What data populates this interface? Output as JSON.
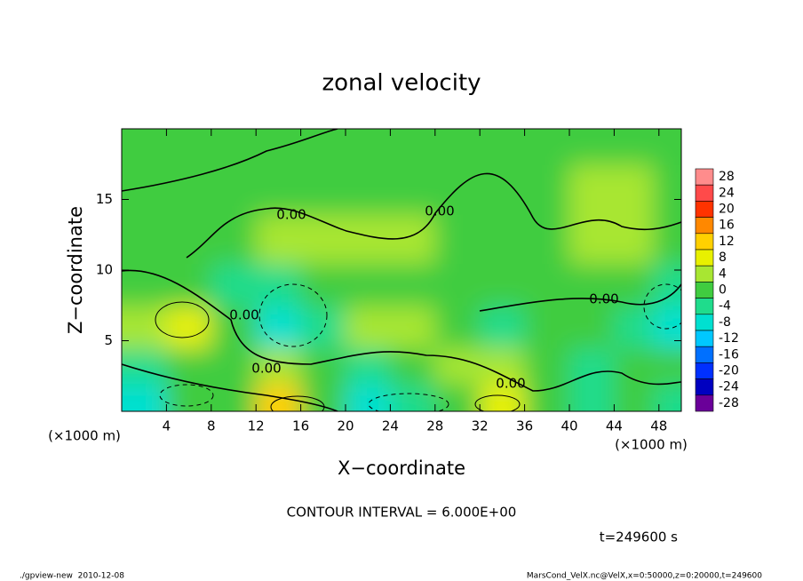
{
  "chart_data": {
    "type": "contour",
    "title": "zonal velocity",
    "x_label": "X−coordinate",
    "y_label": "Z−coordinate",
    "x_unit": "(×1000 m)",
    "contour_interval": "CONTOUR INTERVAL = 6.000E+00",
    "time_label": "t=249600 s",
    "footer_left": "./gpview-new  2010-12-08",
    "footer_right": "MarsCond_VelX.nc@VelX,x=0:50000,z=0:20000,t=249600",
    "contour_labels": [
      "0.00",
      "0.00",
      "0.00",
      "0.00",
      "0.00",
      "0.00"
    ],
    "xlim": [
      0,
      50
    ],
    "ylim": [
      0,
      20
    ],
    "xticks": [
      4,
      8,
      12,
      16,
      20,
      24,
      28,
      32,
      36,
      40,
      44,
      48
    ],
    "yticks": [
      5,
      10,
      15
    ],
    "x": [
      2,
      6,
      10,
      14,
      18,
      22,
      26,
      30,
      34,
      38,
      42,
      46,
      49
    ],
    "y": [
      1,
      3,
      6,
      9,
      12,
      16,
      19
    ],
    "z": [
      [
        -8,
        -2,
        0,
        12,
        -2,
        -8,
        -6,
        0,
        6,
        -2,
        -4,
        -2,
        -6
      ],
      [
        -4,
        0,
        -2,
        2,
        -2,
        -4,
        -2,
        2,
        2,
        -2,
        -4,
        0,
        -2
      ],
      [
        2,
        8,
        0,
        -10,
        -4,
        2,
        4,
        -2,
        -4,
        -2,
        -2,
        -4,
        -8
      ],
      [
        -2,
        0,
        -4,
        -6,
        -2,
        0,
        0,
        -2,
        -2,
        -2,
        -2,
        -2,
        -4
      ],
      [
        -2,
        -2,
        0,
        2,
        2,
        2,
        2,
        0,
        0,
        -2,
        2,
        2,
        0
      ],
      [
        -2,
        -2,
        0,
        -2,
        -2,
        -2,
        -2,
        -2,
        0,
        -2,
        2,
        2,
        -2
      ],
      [
        -2,
        -2,
        -2,
        -2,
        -2,
        -2,
        -2,
        -2,
        -2,
        -2,
        -2,
        -2,
        -2
      ]
    ],
    "colorbar": {
      "levels": [
        28,
        24,
        20,
        16,
        12,
        8,
        4,
        0,
        -4,
        -8,
        -12,
        -16,
        -20,
        -24,
        -28
      ],
      "colors": [
        "#ff8c8c",
        "#ff4a4a",
        "#ff3300",
        "#ff8800",
        "#ffd000",
        "#e8f000",
        "#a8e632",
        "#40cc40",
        "#1fdc8c",
        "#00e0d0",
        "#00c8ff",
        "#0070ff",
        "#0030ff",
        "#0000c0",
        "#6a0099"
      ]
    }
  }
}
